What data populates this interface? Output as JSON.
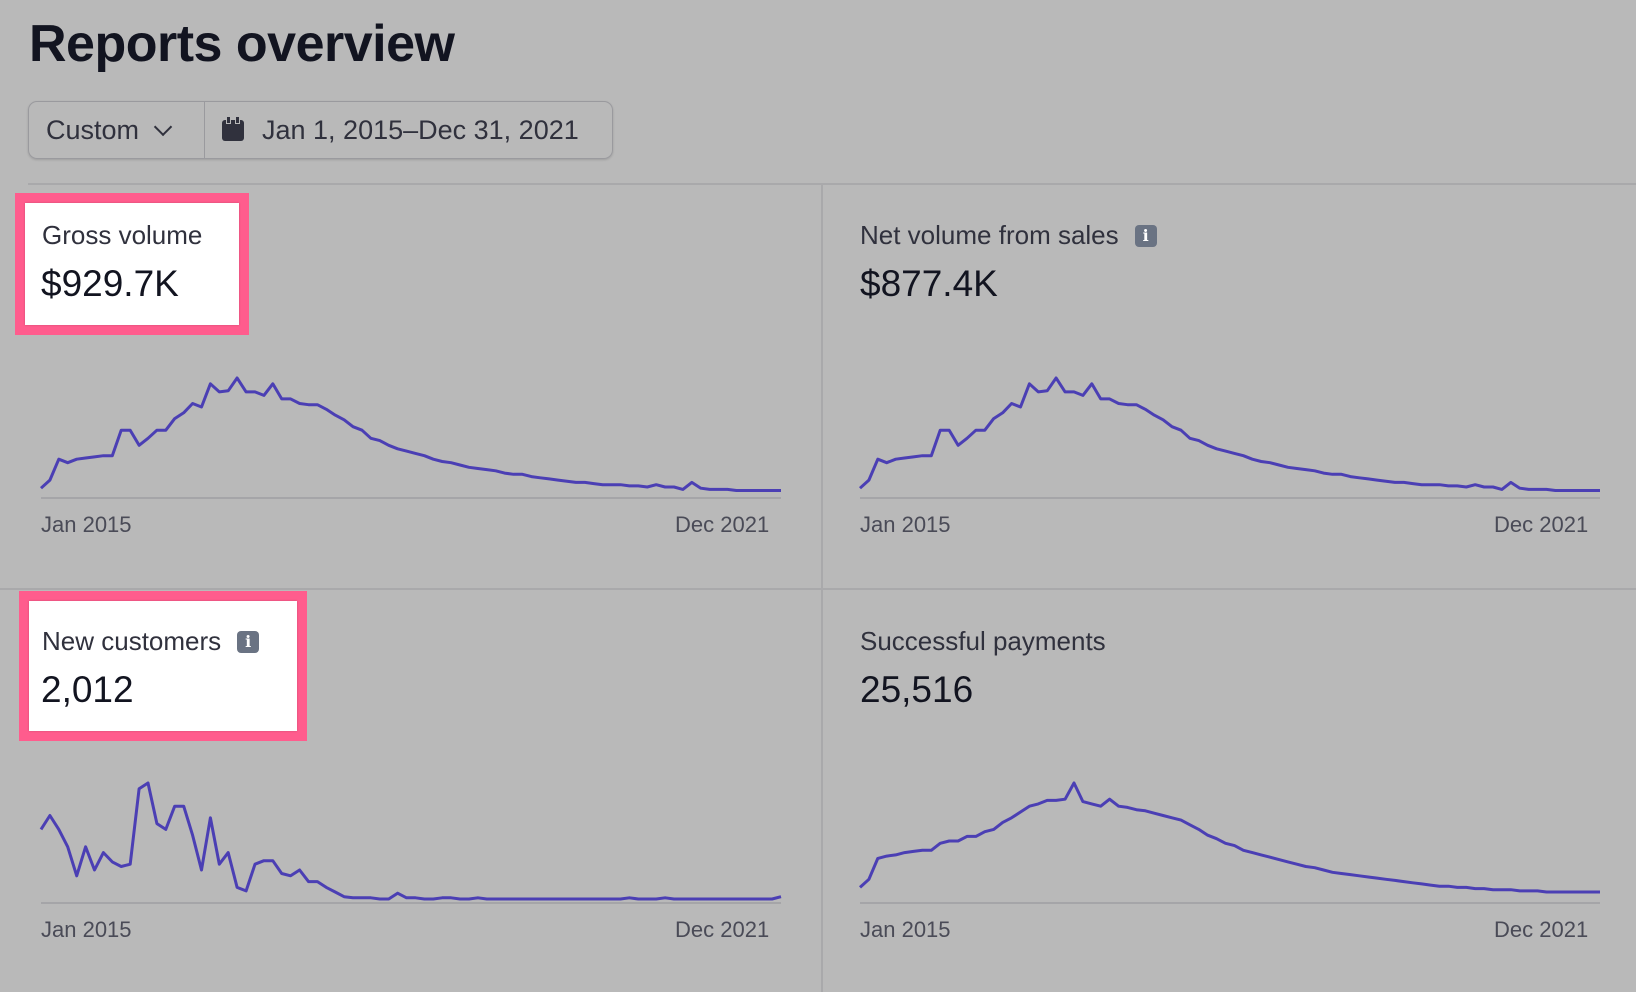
{
  "page": {
    "title": "Reports overview"
  },
  "filters": {
    "preset": "Custom",
    "date_range": "Jan 1, 2015–Dec 31, 2021"
  },
  "colors": {
    "line": "#4b3fb4",
    "highlight": "#ff5c8d",
    "background": "#b9b9b9"
  },
  "chart_data": [
    {
      "type": "line",
      "title": "Gross volume",
      "value": "$929.7K",
      "x_start": "Jan 2015",
      "x_end": "Dec 2021",
      "highlighted": true,
      "info_icon": false,
      "values": [
        5,
        12,
        30,
        27,
        30,
        31,
        32,
        33,
        33,
        55,
        55,
        42,
        48,
        55,
        55,
        65,
        70,
        78,
        75,
        95,
        88,
        89,
        100,
        88,
        88,
        85,
        95,
        82,
        82,
        78,
        77,
        77,
        73,
        68,
        64,
        58,
        55,
        48,
        46,
        42,
        39,
        37,
        35,
        33,
        30,
        28,
        27,
        25,
        23,
        22,
        21,
        20,
        18,
        17,
        17,
        15,
        14,
        13,
        12,
        11,
        10,
        10,
        9,
        8,
        8,
        8,
        7,
        7,
        6,
        8,
        6,
        6,
        4,
        10,
        5,
        4,
        4,
        4,
        3,
        3,
        3,
        3,
        3,
        3
      ]
    },
    {
      "type": "line",
      "title": "Net volume from sales",
      "value": "$877.4K",
      "x_start": "Jan 2015",
      "x_end": "Dec 2021",
      "highlighted": false,
      "info_icon": true,
      "values": [
        5,
        12,
        30,
        27,
        30,
        31,
        32,
        33,
        33,
        55,
        55,
        42,
        48,
        55,
        55,
        65,
        70,
        78,
        75,
        95,
        88,
        89,
        100,
        88,
        88,
        85,
        95,
        82,
        82,
        78,
        77,
        77,
        73,
        68,
        64,
        58,
        55,
        48,
        46,
        42,
        39,
        37,
        35,
        33,
        30,
        28,
        27,
        25,
        23,
        22,
        21,
        20,
        18,
        17,
        17,
        15,
        14,
        13,
        12,
        11,
        10,
        10,
        9,
        8,
        8,
        8,
        7,
        7,
        6,
        8,
        6,
        6,
        4,
        10,
        5,
        4,
        4,
        4,
        3,
        3,
        3,
        3,
        3,
        3
      ]
    },
    {
      "type": "line",
      "title": "New customers",
      "value": "2,012",
      "x_start": "Jan 2015",
      "x_end": "Dec 2021",
      "highlighted": true,
      "info_icon": true,
      "values": [
        60,
        72,
        60,
        45,
        20,
        45,
        25,
        40,
        32,
        28,
        30,
        95,
        100,
        65,
        60,
        80,
        80,
        55,
        25,
        70,
        30,
        40,
        10,
        7,
        30,
        33,
        33,
        22,
        20,
        25,
        15,
        15,
        10,
        6,
        2,
        1,
        1,
        1,
        0,
        0,
        5,
        1,
        1,
        0,
        0,
        1,
        1,
        0,
        0,
        1,
        0,
        0,
        0,
        0,
        0,
        0,
        0,
        0,
        0,
        0,
        0,
        0,
        0,
        0,
        0,
        0,
        1,
        0,
        0,
        0,
        1,
        0,
        0,
        0,
        0,
        0,
        0,
        0,
        0,
        0,
        0,
        0,
        0,
        2
      ]
    },
    {
      "type": "line",
      "title": "Successful payments",
      "value": "25,516",
      "x_start": "Jan 2015",
      "x_end": "Dec 2021",
      "highlighted": false,
      "info_icon": false,
      "values": [
        10,
        17,
        35,
        37,
        38,
        40,
        41,
        42,
        42,
        48,
        50,
        50,
        54,
        54,
        58,
        60,
        66,
        70,
        75,
        80,
        82,
        85,
        85,
        86,
        100,
        84,
        82,
        80,
        86,
        80,
        79,
        77,
        76,
        74,
        72,
        70,
        68,
        64,
        60,
        55,
        52,
        48,
        46,
        42,
        40,
        38,
        36,
        34,
        32,
        30,
        28,
        27,
        25,
        23,
        22,
        21,
        20,
        19,
        18,
        17,
        16,
        15,
        14,
        13,
        12,
        11,
        11,
        10,
        10,
        9,
        9,
        8,
        8,
        8,
        7,
        7,
        7,
        6,
        6,
        6,
        6,
        6,
        6,
        6
      ]
    }
  ]
}
